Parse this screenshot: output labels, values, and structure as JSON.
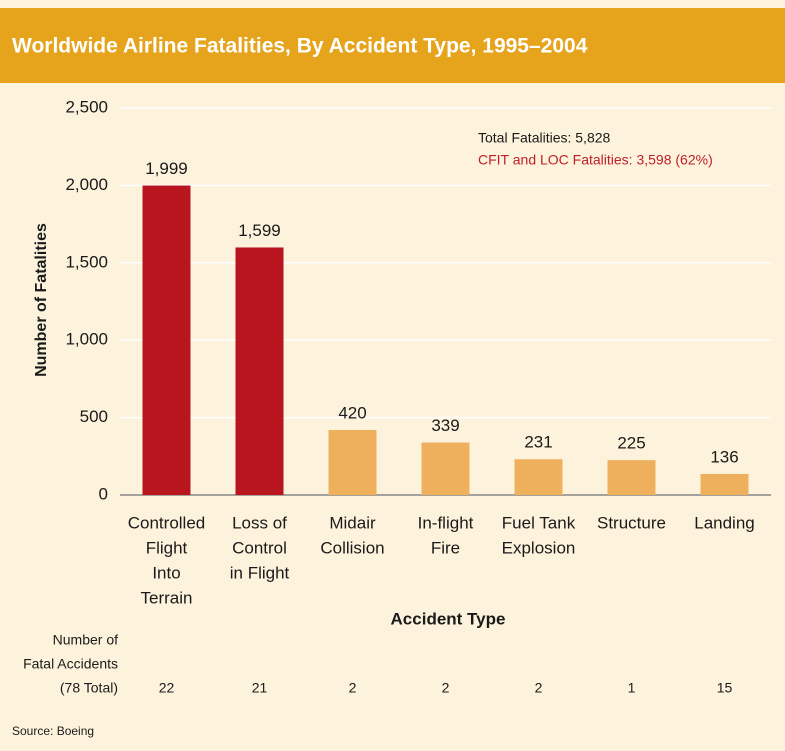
{
  "chart_data": {
    "type": "bar",
    "title": "Worldwide Airline Fatalities, By Accident Type, 1995–2004",
    "categories": [
      [
        "Controlled",
        "Flight",
        "Into",
        "Terrain"
      ],
      [
        "Loss of",
        "Control",
        "in Flight"
      ],
      [
        "Midair",
        "Collision"
      ],
      [
        "In-flight",
        "Fire"
      ],
      [
        "Fuel Tank",
        "Explosion"
      ],
      [
        "Structure"
      ],
      [
        "Landing"
      ]
    ],
    "values": [
      1999,
      1599,
      420,
      339,
      231,
      225,
      136
    ],
    "value_labels": [
      "1,999",
      "1,599",
      "420",
      "339",
      "231",
      "225",
      "136"
    ],
    "colors": [
      "#b8151f",
      "#b8151f",
      "#efb05d",
      "#efb05d",
      "#efb05d",
      "#efb05d",
      "#efb05d"
    ],
    "ylim": [
      0,
      2500
    ],
    "yticks": [
      0,
      {
        "value": 500,
        "label": "500"
      },
      {
        "value": 1000,
        "label": "1,000"
      },
      {
        "value": 1500,
        "label": "1,500"
      },
      {
        "value": 2000,
        "label": "2,000"
      },
      {
        "value": 2500,
        "label": "2,500"
      }
    ],
    "grid": true,
    "y_label": "Number of Fatalities",
    "x_label": "Accident Type",
    "annotations": [
      {
        "text": "Total Fatalities: 5,828",
        "color": "#1a1a1a"
      },
      {
        "text": "CFIT and LOC Fatalities: 3,598 (62%)",
        "color": "#c0202a"
      }
    ],
    "accidents": {
      "header": [
        "Number of",
        "Fatal Accidents",
        "(78 Total)"
      ],
      "values": [
        22,
        21,
        2,
        2,
        2,
        1,
        15
      ]
    },
    "source": "Source: Boeing"
  }
}
